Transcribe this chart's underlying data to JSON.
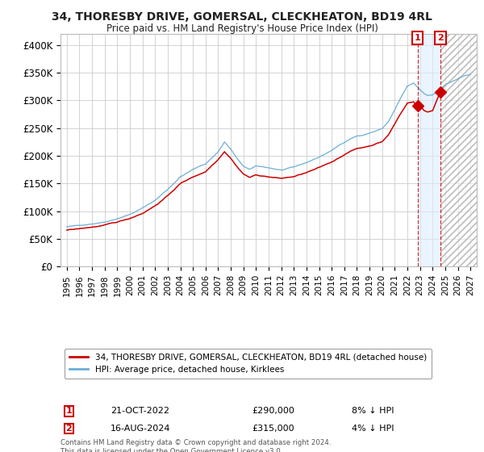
{
  "title": "34, THORESBY DRIVE, GOMERSAL, CLECKHEATON, BD19 4RL",
  "subtitle": "Price paid vs. HM Land Registry's House Price Index (HPI)",
  "legend_label_red": "34, THORESBY DRIVE, GOMERSAL, CLECKHEATON, BD19 4RL (detached house)",
  "legend_label_blue": "HPI: Average price, detached house, Kirklees",
  "footnote": "Contains HM Land Registry data © Crown copyright and database right 2024.\nThis data is licensed under the Open Government Licence v3.0.",
  "red_color": "#cc0000",
  "blue_color": "#6baed6",
  "background_color": "#ffffff",
  "grid_color": "#cccccc",
  "ylim": [
    0,
    420000
  ],
  "yticks": [
    0,
    50000,
    100000,
    150000,
    200000,
    250000,
    300000,
    350000,
    400000
  ],
  "ytick_labels": [
    "£0",
    "£50K",
    "£100K",
    "£150K",
    "£200K",
    "£250K",
    "£300K",
    "£350K",
    "£400K"
  ],
  "sale1_x": 2022.8,
  "sale1_y": 290000,
  "sale2_x": 2024.62,
  "sale2_y": 315000,
  "shade_start": 2022.8,
  "shade_end": 2024.62,
  "hatch_start": 2024.62,
  "hatch_end": 2027.5,
  "xlim_left": 1994.5,
  "xlim_right": 2027.5
}
